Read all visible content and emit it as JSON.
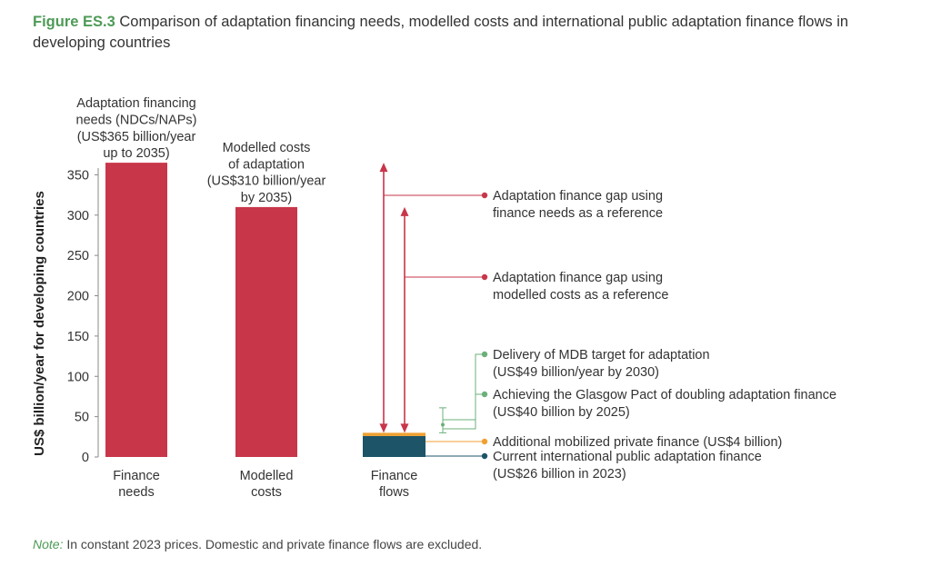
{
  "figure": {
    "number": "Figure ES.3",
    "title": "Comparison of adaptation financing needs, modelled costs and international public adaptation finance flows in developing countries"
  },
  "note": {
    "label": "Note:",
    "text": "In constant 2023 prices. Domestic and private finance flows are excluded."
  },
  "colors": {
    "red": "#c8364a",
    "teal": "#1d5468",
    "orange": "#f0a030",
    "green": "#6bb07a",
    "axis": "#888888",
    "text": "#333333"
  },
  "chart_data": {
    "type": "bar",
    "ylabel": "US$ billion/year for developing countries",
    "ylim": [
      0,
      365
    ],
    "yticks": [
      0,
      50,
      100,
      150,
      200,
      250,
      300,
      350
    ],
    "grid": false,
    "categories": [
      [
        "Finance",
        "needs"
      ],
      [
        "Modelled",
        "costs"
      ],
      [
        "Finance",
        "flows"
      ]
    ],
    "bars": [
      {
        "category": 0,
        "value": 365,
        "color": "#c8364a",
        "label": [
          "Adaptation financing",
          "needs (NDCs/NAPs)",
          "(US$365 billion/year",
          "up to 2035)"
        ]
      },
      {
        "category": 1,
        "value": 310,
        "color": "#c8364a",
        "label": [
          "Modelled costs",
          "of adaptation",
          "(US$310 billion/year",
          "by 2035)"
        ]
      }
    ],
    "stack": [
      {
        "name": "Current international public adaptation finance",
        "value": 26,
        "color": "#1d5468"
      },
      {
        "name": "Additional mobilized private finance",
        "value": 4,
        "color": "#f0a030"
      }
    ],
    "arrows": [
      {
        "from": 30,
        "to": 365,
        "color": "#c8364a"
      },
      {
        "from": 30,
        "to": 310,
        "color": "#c8364a"
      }
    ],
    "targets": [
      {
        "name": "Delivery of MDB target for adaptation",
        "value": 49
      },
      {
        "name": "Achieving the Glasgow Pact of doubling adaptation finance",
        "value": 40
      }
    ],
    "annotations": [
      {
        "lines": [
          "Adaptation finance gap using",
          "finance needs as a reference"
        ],
        "color": "#c8364a"
      },
      {
        "lines": [
          "Adaptation finance gap using",
          "modelled costs as a reference"
        ],
        "color": "#c8364a"
      },
      {
        "lines": [
          "Delivery of MDB target for adaptation",
          "(US$49 billion/year by 2030)"
        ],
        "color": "#6bb07a"
      },
      {
        "lines": [
          "Achieving the Glasgow Pact of doubling adaptation finance",
          "(US$40 billion by 2025)"
        ],
        "color": "#6bb07a"
      },
      {
        "lines": [
          "Additional mobilized private finance (US$4 billion)"
        ],
        "color": "#f0a030"
      },
      {
        "lines": [
          "Current international public adaptation finance",
          "(US$26 billion in 2023)"
        ],
        "color": "#1d5468"
      }
    ]
  }
}
